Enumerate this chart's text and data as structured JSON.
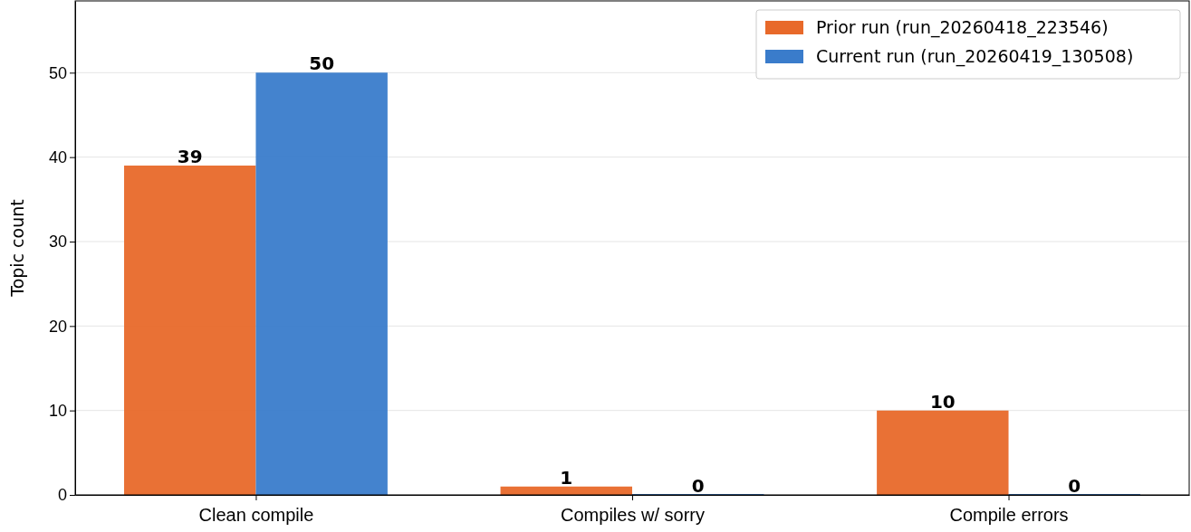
{
  "chart_data": {
    "type": "bar",
    "ylabel": "Topic count",
    "categories": [
      "Clean compile",
      "Compiles w/ sorry",
      "Compile errors"
    ],
    "series": [
      {
        "name": "Prior run (run_20260418_223546)",
        "color": "#e8692a",
        "values": [
          39,
          1,
          10
        ]
      },
      {
        "name": "Current run (run_20260419_130508)",
        "color": "#3a7ccb",
        "values": [
          50,
          0,
          0
        ]
      }
    ],
    "ylim": [
      0,
      58.5
    ],
    "yticks": [
      0,
      10,
      20,
      30,
      40,
      50
    ],
    "grid": "y",
    "legend": "top right",
    "data_labels": true
  }
}
